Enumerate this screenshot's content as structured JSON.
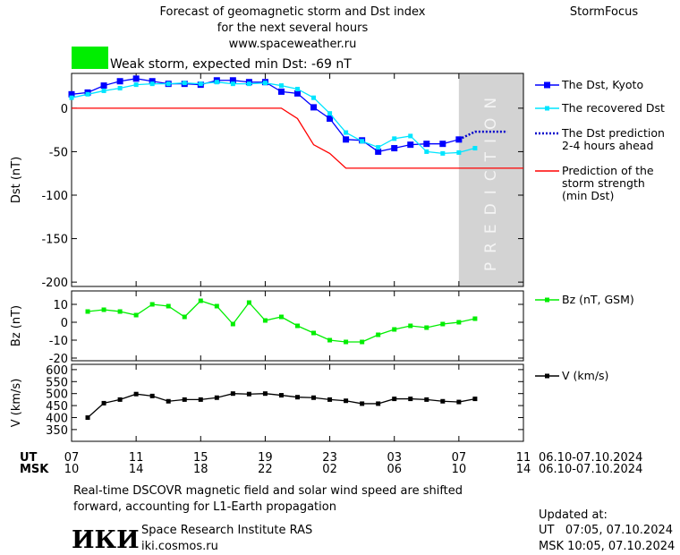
{
  "header": {
    "title": "Forecast of geomagnetic storm and Dst index\nfor the next several hours\nwww.spaceweather.ru",
    "brand": "StormFocus"
  },
  "chart_data": [
    {
      "type": "line",
      "ylabel": "Dst (nT)",
      "annotation": "Weak storm, expected min Dst: -69 nT",
      "annotation_color": "#00ee00",
      "prediction_label": "PREDICTION",
      "prediction_xlim": [
        24,
        28
      ],
      "prediction_color": "#d3d3d3",
      "x": [
        0,
        1,
        2,
        3,
        4,
        5,
        6,
        7,
        8,
        9,
        10,
        11,
        12,
        13,
        14,
        15,
        16,
        17,
        18,
        19,
        20,
        21,
        22,
        23,
        24,
        25,
        26,
        27,
        28
      ],
      "xlim": [
        0,
        28
      ],
      "ylim": [
        -205,
        40
      ],
      "yticks": [
        -200,
        -150,
        -100,
        -50,
        0
      ],
      "series": [
        {
          "name": "The Dst, Kyoto",
          "color": "#0000ff",
          "marker": "square",
          "style": "solid",
          "values": [
            16,
            18,
            26,
            31,
            34,
            31,
            28,
            28,
            27,
            32,
            32,
            30,
            30,
            19,
            17,
            1,
            -12,
            -36,
            -37,
            -50,
            -46,
            -42,
            -41,
            -41,
            -36,
            null,
            null,
            null,
            null
          ]
        },
        {
          "name": "The recovered Dst",
          "color": "#00e5ff",
          "marker": "small-square",
          "style": "solid",
          "values": [
            12,
            16,
            20,
            23,
            27,
            28,
            28,
            29,
            28,
            30,
            28,
            28,
            29,
            26,
            22,
            12,
            -6,
            -28,
            -38,
            -45,
            -35,
            -32,
            -50,
            -52,
            -51,
            -46,
            null,
            null,
            null
          ]
        },
        {
          "name": "The Dst prediction\n2-4 hours ahead",
          "color": "#0000cc",
          "marker": "none",
          "style": "dotted",
          "values": [
            null,
            null,
            null,
            null,
            null,
            null,
            null,
            null,
            null,
            null,
            null,
            null,
            null,
            null,
            null,
            null,
            null,
            null,
            null,
            null,
            null,
            null,
            null,
            null,
            -36,
            -27,
            -27,
            -27,
            null
          ]
        },
        {
          "name": "Prediction of the\nstorm strength\n(min Dst)",
          "color": "#ff0000",
          "marker": "none",
          "style": "solid",
          "values": [
            0,
            0,
            0,
            0,
            0,
            0,
            0,
            0,
            0,
            0,
            0,
            0,
            0,
            0,
            -12,
            -42,
            -52,
            -69,
            -69,
            -69,
            -69,
            -69,
            -69,
            -69,
            -69,
            -69,
            -69,
            -69,
            -69
          ]
        }
      ]
    },
    {
      "type": "line",
      "ylabel": "Bz (nT)",
      "x": [
        1,
        2,
        3,
        4,
        5,
        6,
        7,
        8,
        9,
        10,
        11,
        12,
        13,
        14,
        15,
        16,
        17,
        18,
        19,
        20,
        21,
        22,
        23,
        24,
        25
      ],
      "xlim": [
        0,
        28
      ],
      "ylim": [
        -21.5,
        17.5
      ],
      "yticks": [
        -20,
        -10,
        0,
        10
      ],
      "series": [
        {
          "name": "Bz (nT, GSM)",
          "color": "#00ee00",
          "marker": "small-square",
          "style": "solid",
          "values": [
            6,
            7,
            6,
            4,
            10,
            9,
            3,
            12,
            9,
            -1,
            11,
            1,
            3,
            -2,
            -6,
            -10,
            -11,
            -11,
            -7,
            -4,
            -2,
            -3,
            -1,
            0,
            2
          ]
        }
      ]
    },
    {
      "type": "line",
      "ylabel": "V (km/s)",
      "x": [
        1,
        2,
        3,
        4,
        5,
        6,
        7,
        8,
        9,
        10,
        11,
        12,
        13,
        14,
        15,
        16,
        17,
        18,
        19,
        20,
        21,
        22,
        23,
        24,
        25
      ],
      "xlim": [
        0,
        28
      ],
      "ylim": [
        301,
        622
      ],
      "yticks": [
        350,
        400,
        450,
        500,
        550,
        600
      ],
      "series": [
        {
          "name": "V (km/s)",
          "color": "#000000",
          "marker": "small-square",
          "style": "solid",
          "values": [
            400,
            460,
            475,
            498,
            490,
            468,
            475,
            475,
            483,
            500,
            498,
            500,
            493,
            485,
            483,
            475,
            470,
            458,
            458,
            478,
            478,
            475,
            468,
            465,
            478
          ]
        }
      ]
    }
  ],
  "time_axis": {
    "ut_label": "UT",
    "msk_label": "MSK",
    "ut_ticks": [
      {
        "value": 0,
        "label": "07"
      },
      {
        "value": 4,
        "label": "11"
      },
      {
        "value": 8,
        "label": "15"
      },
      {
        "value": 12,
        "label": "19"
      },
      {
        "value": 16,
        "label": "23"
      },
      {
        "value": 20,
        "label": "03"
      },
      {
        "value": 24,
        "label": "07"
      },
      {
        "value": 28,
        "label": "11"
      }
    ],
    "msk_ticks": [
      {
        "value": 0,
        "label": "10"
      },
      {
        "value": 4,
        "label": "14"
      },
      {
        "value": 8,
        "label": "18"
      },
      {
        "value": 12,
        "label": "22"
      },
      {
        "value": 16,
        "label": "02"
      },
      {
        "value": 20,
        "label": "06"
      },
      {
        "value": 24,
        "label": "10"
      },
      {
        "value": 28,
        "label": "14"
      }
    ],
    "ut_range": "06.10-07.10.2024",
    "msk_range": "06.10-07.10.2024"
  },
  "footer": {
    "note": "Real-time DSCOVR magnetic field and solar wind speed are shifted\nforward, accounting for L1-Earth propagation",
    "logo": "ИКИ",
    "institute": "Space Research Institute RAS",
    "site": "iki.cosmos.ru",
    "updated": "Updated at:",
    "updated_ut": "UT   07:05, 07.10.2024",
    "updated_msk": "MSK 10:05, 07.10.2024"
  }
}
